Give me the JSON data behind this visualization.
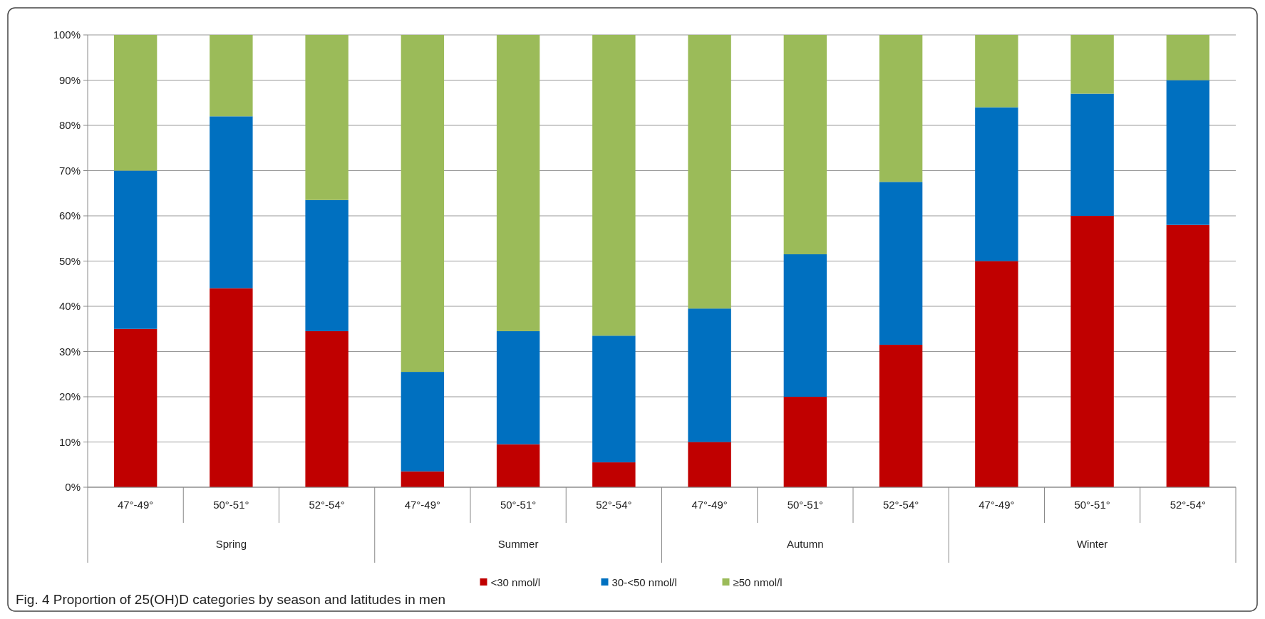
{
  "chart_data": {
    "type": "bar",
    "stacked": true,
    "categories": [
      "47°-49°",
      "50°-51°",
      "52°-54°",
      "47°-49°",
      "50°-51°",
      "52°-54°",
      "47°-49°",
      "50°-51°",
      "52°-54°",
      "47°-49°",
      "50°-51°",
      "52°-54°"
    ],
    "series": [
      {
        "name": "<30 nmol/l",
        "color": "#c00000",
        "values": [
          35,
          44,
          34.5,
          3.5,
          9.5,
          5.5,
          10,
          20,
          31.5,
          50,
          60,
          58
        ]
      },
      {
        "name": "30-<50 nmol/l",
        "color": "#0070c0",
        "values": [
          35,
          38,
          29,
          22,
          25,
          28,
          29.5,
          31.5,
          36,
          34,
          27,
          32
        ]
      },
      {
        "name": "≥50 nmol/l",
        "color": "#9bbb59",
        "values": [
          30,
          18,
          36.5,
          74.5,
          65.5,
          66.5,
          60.5,
          48.5,
          32.5,
          16,
          13,
          10
        ]
      }
    ],
    "ylim": [
      0,
      100
    ],
    "yticks": [
      {
        "value": 0,
        "label": "0%"
      },
      {
        "value": 10,
        "label": "10%"
      },
      {
        "value": 20,
        "label": "20%"
      },
      {
        "value": 30,
        "label": "30%"
      },
      {
        "value": 40,
        "label": "40%"
      },
      {
        "value": 50,
        "label": "50%"
      },
      {
        "value": 60,
        "label": "60%"
      },
      {
        "value": 70,
        "label": "70%"
      },
      {
        "value": 80,
        "label": "80%"
      },
      {
        "value": 90,
        "label": "90%"
      },
      {
        "value": 100,
        "label": "100%"
      }
    ],
    "grid": "y",
    "legend": "bottom",
    "annotations": [
      "Spring",
      "Summer",
      "Autumn",
      "Winter",
      "Fig. 4 Proportion of 25(OH)D categories by season and latitudes in men"
    ]
  }
}
